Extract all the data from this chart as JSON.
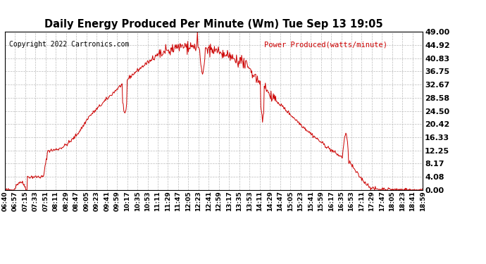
{
  "title": "Daily Energy Produced Per Minute (Wm) Tue Sep 13 19:05",
  "copyright_text": "Copyright 2022 Cartronics.com",
  "legend_label": "Power Produced(watts/minute)",
  "line_color": "#cc0000",
  "background_color": "#ffffff",
  "grid_color": "#bbbbbb",
  "y_ticks": [
    0.0,
    4.08,
    8.17,
    12.25,
    16.33,
    20.42,
    24.5,
    28.58,
    32.67,
    36.75,
    40.83,
    44.92,
    49.0
  ],
  "y_min": 0,
  "y_max": 49.0,
  "x_tick_labels": [
    "06:40",
    "06:57",
    "07:15",
    "07:33",
    "07:51",
    "08:11",
    "08:29",
    "08:47",
    "09:05",
    "09:23",
    "09:41",
    "09:59",
    "10:17",
    "10:35",
    "10:53",
    "11:11",
    "11:29",
    "11:47",
    "12:05",
    "12:23",
    "12:41",
    "12:59",
    "13:17",
    "13:35",
    "13:53",
    "14:11",
    "14:29",
    "14:47",
    "15:05",
    "15:23",
    "15:41",
    "15:59",
    "16:17",
    "16:35",
    "16:53",
    "17:11",
    "17:29",
    "17:47",
    "18:05",
    "18:23",
    "18:41",
    "18:59"
  ]
}
